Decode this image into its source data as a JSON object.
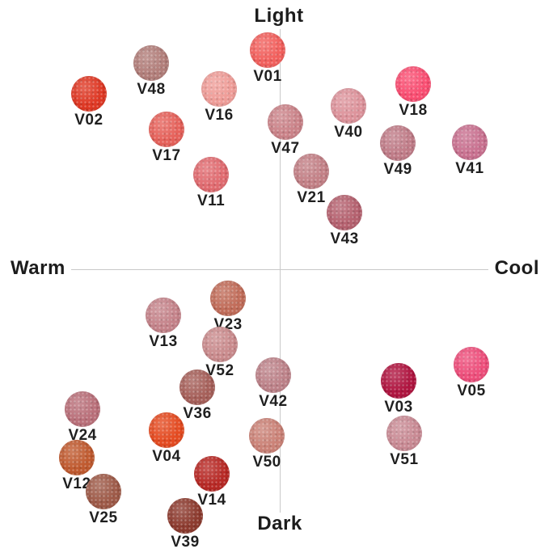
{
  "chart_data": {
    "type": "scatter",
    "title": "",
    "description": "Quadrant shade map: horizontal axis Warm to Cool, vertical axis Dark to Light; each point is a textured lipstick shade swatch labeled with its shade code.",
    "axes": {
      "top_label": "Light",
      "bottom_label": "Dark",
      "left_label": "Warm",
      "right_label": "Cool",
      "xlim": [
        -1.15,
        1.15
      ],
      "ylim": [
        -1.15,
        1.15
      ],
      "grid": false,
      "legend": "none"
    },
    "colors": {
      "background": "#ffffff",
      "axis_line": "#c9c9c9",
      "text": "#1c1c1c"
    },
    "points": [
      {
        "label": "V01",
        "x": -0.05,
        "y": 0.903,
        "color": "#f2605d"
      },
      {
        "label": "V48",
        "x": -0.53,
        "y": 0.85,
        "color": "#b27e7a"
      },
      {
        "label": "V02",
        "x": -0.787,
        "y": 0.723,
        "color": "#df3824"
      },
      {
        "label": "V16",
        "x": -0.25,
        "y": 0.743,
        "color": "#ef9d98"
      },
      {
        "label": "V18",
        "x": 0.55,
        "y": 0.763,
        "color": "#fa4e72"
      },
      {
        "label": "V40",
        "x": 0.283,
        "y": 0.673,
        "color": "#dd939b"
      },
      {
        "label": "V47",
        "x": 0.023,
        "y": 0.607,
        "color": "#cb8389"
      },
      {
        "label": "V17",
        "x": -0.467,
        "y": 0.577,
        "color": "#e6615a"
      },
      {
        "label": "V49",
        "x": 0.487,
        "y": 0.52,
        "color": "#c07c88"
      },
      {
        "label": "V41",
        "x": 0.783,
        "y": 0.523,
        "color": "#c97190"
      },
      {
        "label": "V11",
        "x": -0.283,
        "y": 0.39,
        "color": "#e16b70"
      },
      {
        "label": "V21",
        "x": 0.13,
        "y": 0.403,
        "color": "#c38086"
      },
      {
        "label": "V43",
        "x": 0.267,
        "y": 0.233,
        "color": "#b5616f"
      },
      {
        "label": "V23",
        "x": -0.213,
        "y": -0.12,
        "color": "#c16c59"
      },
      {
        "label": "V13",
        "x": -0.48,
        "y": -0.19,
        "color": "#c5838a"
      },
      {
        "label": "V52",
        "x": -0.247,
        "y": -0.31,
        "color": "#ca8b8d"
      },
      {
        "label": "V42",
        "x": -0.027,
        "y": -0.437,
        "color": "#bd8289"
      },
      {
        "label": "V36",
        "x": -0.34,
        "y": -0.487,
        "color": "#a6605a"
      },
      {
        "label": "V03",
        "x": 0.49,
        "y": -0.46,
        "color": "#b01540"
      },
      {
        "label": "V05",
        "x": 0.79,
        "y": -0.393,
        "color": "#ee4e7b"
      },
      {
        "label": "V24",
        "x": -0.813,
        "y": -0.577,
        "color": "#ba707a"
      },
      {
        "label": "V04",
        "x": -0.467,
        "y": -0.663,
        "color": "#e54b21"
      },
      {
        "label": "V50",
        "x": -0.053,
        "y": -0.687,
        "color": "#cb8277"
      },
      {
        "label": "V51",
        "x": 0.513,
        "y": -0.677,
        "color": "#c98a94"
      },
      {
        "label": "V12",
        "x": -0.837,
        "y": -0.777,
        "color": "#c05a2f"
      },
      {
        "label": "V14",
        "x": -0.28,
        "y": -0.843,
        "color": "#b82925"
      },
      {
        "label": "V25",
        "x": -0.727,
        "y": -0.917,
        "color": "#9e5a48"
      },
      {
        "label": "V39",
        "x": -0.39,
        "y": -1.017,
        "color": "#8d3b2f"
      }
    ]
  }
}
